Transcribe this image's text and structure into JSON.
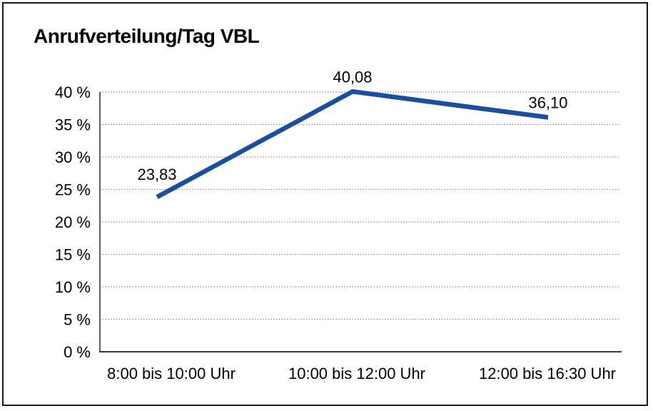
{
  "chart": {
    "title": "Anrufverteilung/Tag VBL"
  },
  "chart_data": {
    "type": "line",
    "title": "Anrufverteilung/Tag VBL",
    "categories": [
      "8:00 bis 10:00 Uhr",
      "10:00 bis 12:00 Uhr",
      "12:00 bis 16:30 Uhr"
    ],
    "values": [
      23.83,
      40.08,
      36.1
    ],
    "value_labels": [
      "23,83",
      "40,08",
      "36,10"
    ],
    "xlabel": "",
    "ylabel": "",
    "ylim": [
      0,
      40
    ],
    "ytick_step": 5,
    "ytick_labels": [
      "0 %",
      "5 %",
      "10 %",
      "15 %",
      "20 %",
      "25 %",
      "30 %",
      "35 %",
      "40 %"
    ],
    "grid": "horizontal-dotted",
    "legend": "none"
  },
  "colors": {
    "line": "#1a4f9c",
    "grid": "#858585",
    "axis": "#3a3a3a",
    "border": "#1a1a1a",
    "background": "#ffffff",
    "text": "#000000"
  }
}
